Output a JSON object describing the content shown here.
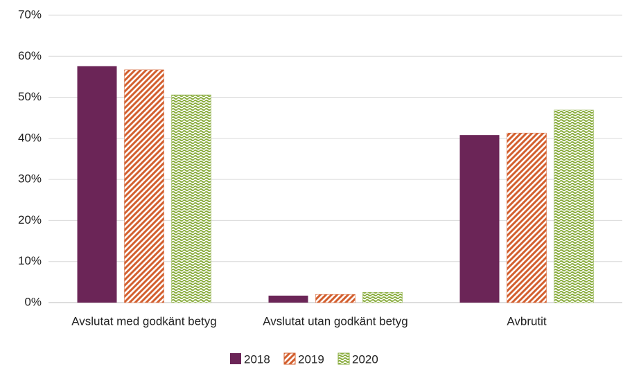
{
  "chart_data": {
    "type": "bar",
    "categories": [
      "Avslutat med godkänt betyg",
      "Avslutat utan godkänt betyg",
      "Avbrutit"
    ],
    "series": [
      {
        "name": "2018",
        "color": "#6b2557",
        "values": [
          57.6,
          1.7,
          40.8
        ]
      },
      {
        "name": "2019",
        "color": "#d35f2e",
        "values": [
          56.7,
          2.0,
          41.3
        ]
      },
      {
        "name": "2020",
        "color": "#8aad3f",
        "values": [
          50.6,
          2.5,
          46.9
        ]
      }
    ],
    "ylim": [
      0,
      70
    ],
    "yticks": [
      {
        "value": 0,
        "label": "0%"
      },
      {
        "value": 10,
        "label": "10%"
      },
      {
        "value": 20,
        "label": "20%"
      },
      {
        "value": 30,
        "label": "30%"
      },
      {
        "value": 40,
        "label": "40%"
      },
      {
        "value": 50,
        "label": "50%"
      },
      {
        "value": 60,
        "label": "60%"
      },
      {
        "value": 70,
        "label": "70%"
      }
    ],
    "grid": true,
    "legend": "bottom"
  }
}
